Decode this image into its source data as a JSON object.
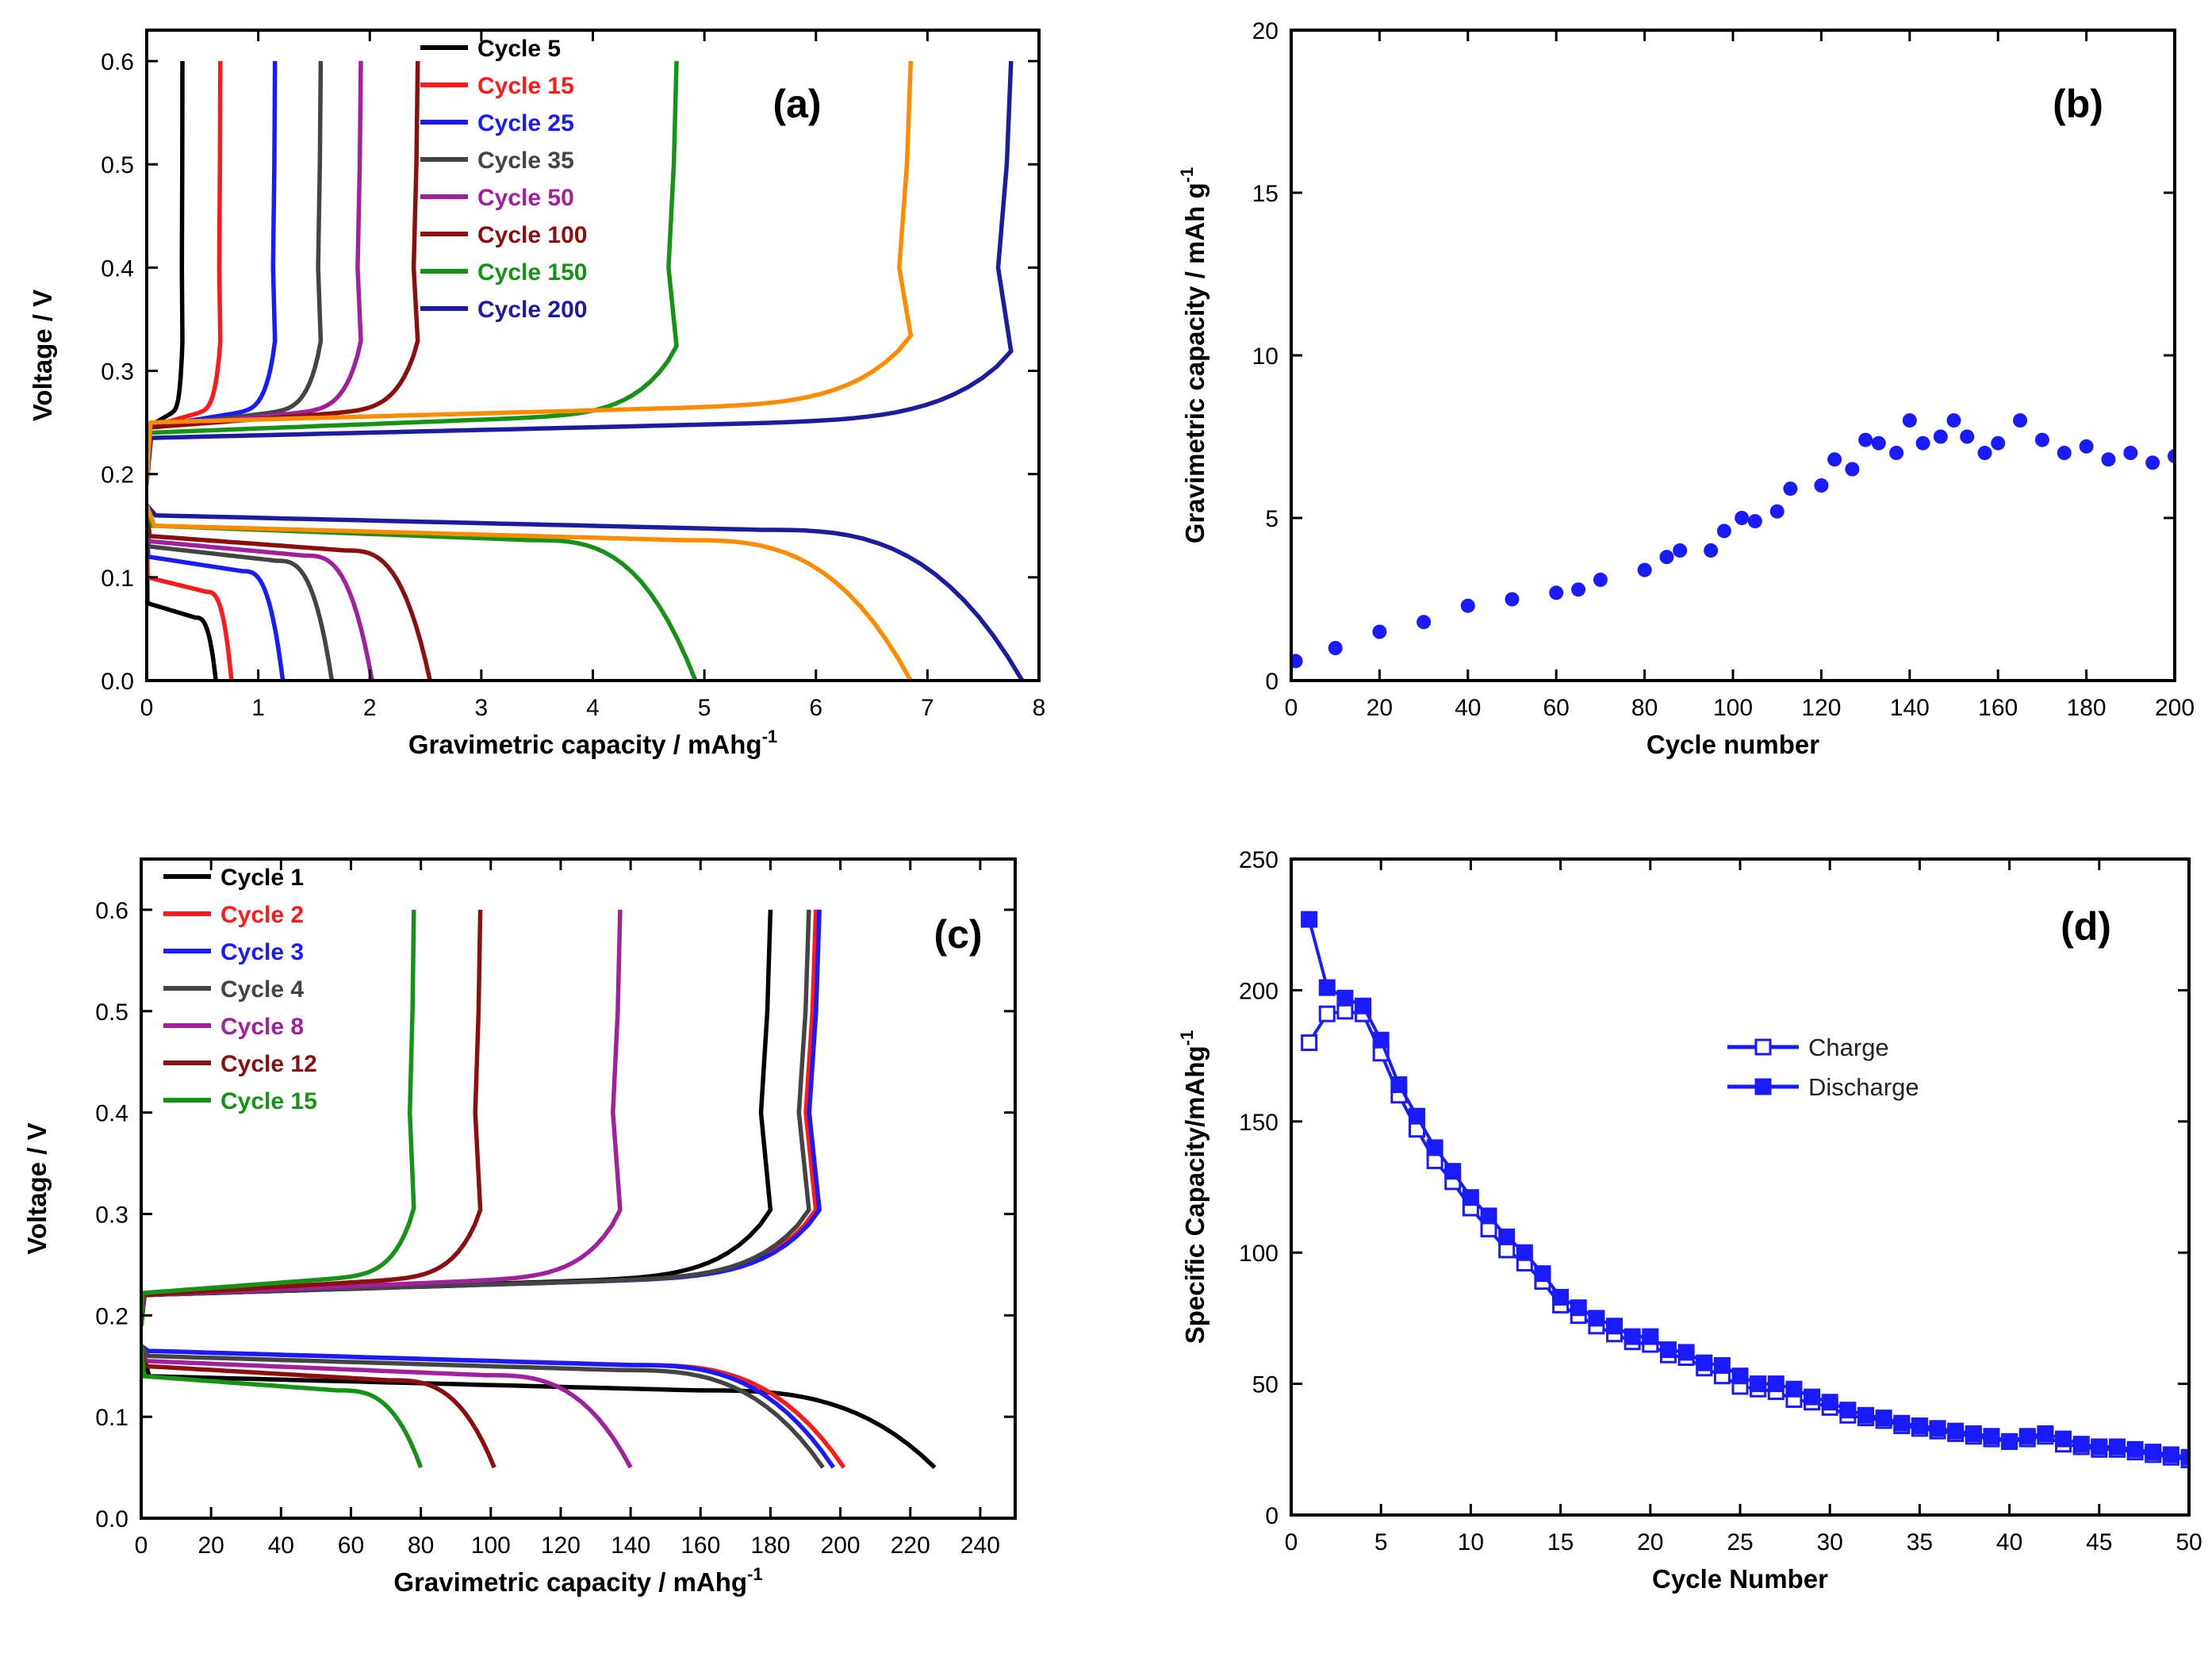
{
  "chart_data": [
    {
      "id": "a",
      "type": "line",
      "panel_label": "(a)",
      "xlabel": "Gravimetric capacity / mAhg",
      "xlabel_sup": "-1",
      "ylabel": "Voltage / V",
      "xlim": [
        0,
        8
      ],
      "ylim": [
        0,
        0.63
      ],
      "xticks": [
        0,
        1,
        2,
        3,
        4,
        5,
        6,
        7,
        8
      ],
      "yticks": [
        0.0,
        0.1,
        0.2,
        0.3,
        0.4,
        0.5,
        0.6
      ],
      "ytick_decimals": 1,
      "legend": "top-left",
      "legend_style": "bold-colored",
      "series": [
        {
          "name": "Cycle 5",
          "color": "#000000",
          "charge_end": 0.32,
          "discharge_end": 0.62,
          "discharge_start_v": 0.075,
          "charge_plateau_v": 0.245
        },
        {
          "name": "Cycle 15",
          "color": "#ff1a1a",
          "charge_end": 0.66,
          "discharge_end": 0.76,
          "discharge_start_v": 0.1,
          "charge_plateau_v": 0.245
        },
        {
          "name": "Cycle 25",
          "color": "#1a1aff",
          "charge_end": 1.15,
          "discharge_end": 1.22,
          "discharge_start_v": 0.12,
          "charge_plateau_v": 0.245
        },
        {
          "name": "Cycle 35",
          "color": "#444444",
          "charge_end": 1.56,
          "discharge_end": 1.66,
          "discharge_start_v": 0.13,
          "charge_plateau_v": 0.245
        },
        {
          "name": "Cycle 50",
          "color": "#a0209e",
          "charge_end": 1.92,
          "discharge_end": 2.02,
          "discharge_start_v": 0.135,
          "charge_plateau_v": 0.245
        },
        {
          "name": "Cycle 100",
          "color": "#8b0f0f",
          "charge_end": 2.43,
          "discharge_end": 2.54,
          "discharge_start_v": 0.14,
          "charge_plateau_v": 0.245
        },
        {
          "name": "Cycle 150",
          "color": "#169316",
          "charge_end": 4.75,
          "discharge_end": 4.92,
          "discharge_start_v": 0.15,
          "charge_plateau_v": 0.24
        },
        {
          "name": "Cycle 200",
          "color": "#1c1ca0",
          "charge_end": 7.75,
          "discharge_end": 7.85,
          "discharge_start_v": 0.16,
          "charge_plateau_v": 0.235
        },
        {
          "name": "",
          "color": "#ff8c00",
          "charge_end": 6.85,
          "discharge_end": 6.85,
          "discharge_start_v": 0.15,
          "charge_plateau_v": 0.25
        }
      ]
    },
    {
      "id": "b",
      "type": "scatter",
      "panel_label": "(b)",
      "xlabel": "Cycle number",
      "ylabel": "Gravimetric capacity / mAh g",
      "ylabel_sup": "-1",
      "xlim": [
        0,
        200
      ],
      "ylim": [
        0,
        20
      ],
      "xticks": [
        0,
        20,
        40,
        60,
        80,
        100,
        120,
        140,
        160,
        180,
        200
      ],
      "yticks": [
        0,
        5,
        10,
        15,
        20
      ],
      "ytick_decimals": 0,
      "series": [
        {
          "name": "Capacity",
          "color": "#1a1aff",
          "x": [
            1,
            10,
            20,
            30,
            40,
            50,
            60,
            65,
            70,
            80,
            85,
            88,
            95,
            98,
            102,
            105,
            110,
            113,
            120,
            123,
            127,
            130,
            133,
            137,
            140,
            143,
            147,
            150,
            153,
            157,
            160,
            165,
            170,
            175,
            180,
            185,
            190,
            195,
            200
          ],
          "y": [
            0.6,
            1.0,
            1.5,
            1.8,
            2.3,
            2.5,
            2.7,
            2.8,
            3.1,
            3.4,
            3.8,
            4.0,
            4.0,
            4.6,
            5.0,
            4.9,
            5.2,
            5.9,
            6.0,
            6.8,
            6.5,
            7.4,
            7.3,
            7.0,
            8.0,
            7.3,
            7.5,
            8.0,
            7.5,
            7.0,
            7.3,
            8.0,
            7.4,
            7.0,
            7.2,
            6.8,
            7.0,
            6.7,
            6.9
          ]
        }
      ]
    },
    {
      "id": "c",
      "type": "line",
      "panel_label": "(c)",
      "xlabel": "Gravimetric capacity / mAhg",
      "xlabel_sup": "-1",
      "ylabel": "Voltage / V",
      "xlim": [
        0,
        250
      ],
      "ylim": [
        0,
        0.65
      ],
      "xticks": [
        0,
        20,
        40,
        60,
        80,
        100,
        120,
        140,
        160,
        180,
        200,
        220,
        240
      ],
      "yticks": [
        0.0,
        0.1,
        0.2,
        0.3,
        0.4,
        0.5,
        0.6
      ],
      "ytick_decimals": 1,
      "legend": "top-left",
      "legend_style": "bold-colored",
      "series": [
        {
          "name": "Cycle 1",
          "color": "#000000",
          "charge_end": 180,
          "discharge_end": 227,
          "discharge_start_v": 0.14,
          "charge_plateau_v": 0.22
        },
        {
          "name": "Cycle 2",
          "color": "#ff1a1a",
          "charge_end": 193,
          "discharge_end": 201,
          "discharge_start_v": 0.165,
          "charge_plateau_v": 0.22
        },
        {
          "name": "Cycle 3",
          "color": "#1a1aff",
          "charge_end": 194,
          "discharge_end": 198,
          "discharge_start_v": 0.165,
          "charge_plateau_v": 0.22
        },
        {
          "name": "Cycle 4",
          "color": "#444444",
          "charge_end": 191,
          "discharge_end": 195,
          "discharge_start_v": 0.16,
          "charge_plateau_v": 0.22
        },
        {
          "name": "Cycle 8",
          "color": "#a0209e",
          "charge_end": 137,
          "discharge_end": 140,
          "discharge_start_v": 0.155,
          "charge_plateau_v": 0.22
        },
        {
          "name": "Cycle 12",
          "color": "#8b0f0f",
          "charge_end": 97,
          "discharge_end": 101,
          "discharge_start_v": 0.15,
          "charge_plateau_v": 0.22
        },
        {
          "name": "Cycle 15",
          "color": "#169316",
          "charge_end": 78,
          "discharge_end": 80,
          "discharge_start_v": 0.14,
          "charge_plateau_v": 0.222
        }
      ]
    },
    {
      "id": "d",
      "type": "line",
      "panel_label": "(d)",
      "xlabel": "Cycle Number",
      "ylabel": "Specific Capacity/mAhg",
      "ylabel_sup": "-1",
      "xlim": [
        0,
        50
      ],
      "ylim": [
        0,
        250
      ],
      "xticks": [
        0,
        5,
        10,
        15,
        20,
        25,
        30,
        35,
        40,
        45,
        50
      ],
      "yticks": [
        0,
        50,
        100,
        150,
        200,
        250
      ],
      "ytick_decimals": 0,
      "legend": "center-right",
      "legend_style": "plain",
      "series": [
        {
          "name": "Charge",
          "color": "#1a1aff",
          "marker": "open-square",
          "x": [
            1,
            2,
            3,
            4,
            5,
            6,
            7,
            8,
            9,
            10,
            11,
            12,
            13,
            14,
            15,
            16,
            17,
            18,
            19,
            20,
            21,
            22,
            23,
            24,
            25,
            26,
            27,
            28,
            29,
            30,
            31,
            32,
            33,
            34,
            35,
            36,
            37,
            38,
            39,
            40,
            41,
            42,
            43,
            44,
            45,
            46,
            47,
            48,
            49,
            50
          ],
          "y": [
            180,
            191,
            192,
            191,
            176,
            160,
            147,
            135,
            127,
            117,
            109,
            101,
            96,
            89,
            80,
            76,
            72,
            69,
            66,
            65,
            61,
            60,
            56,
            53,
            49,
            48,
            47,
            44,
            43,
            41,
            38,
            37,
            36,
            34,
            33,
            32,
            31,
            30,
            29,
            28,
            29,
            30,
            27,
            26,
            25,
            25,
            24,
            23,
            22,
            21
          ]
        },
        {
          "name": "Discharge",
          "color": "#1a1aff",
          "marker": "filled-square",
          "x": [
            1,
            2,
            3,
            4,
            5,
            6,
            7,
            8,
            9,
            10,
            11,
            12,
            13,
            14,
            15,
            16,
            17,
            18,
            19,
            20,
            21,
            22,
            23,
            24,
            25,
            26,
            27,
            28,
            29,
            30,
            31,
            32,
            33,
            34,
            35,
            36,
            37,
            38,
            39,
            40,
            41,
            42,
            43,
            44,
            45,
            46,
            47,
            48,
            49,
            50
          ],
          "y": [
            227,
            201,
            197,
            194,
            181,
            164,
            152,
            140,
            131,
            121,
            114,
            106,
            100,
            92,
            83,
            79,
            75,
            72,
            68,
            68,
            63,
            62,
            58,
            57,
            53,
            50,
            50,
            48,
            45,
            43,
            40,
            38,
            37,
            35,
            34,
            33,
            32,
            31,
            30,
            28,
            30,
            31,
            29,
            27,
            26,
            26,
            25,
            24,
            23,
            22
          ]
        }
      ]
    }
  ]
}
